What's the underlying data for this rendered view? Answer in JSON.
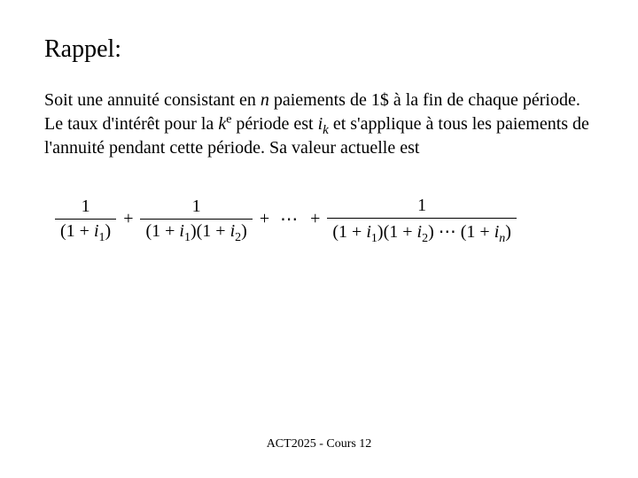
{
  "title": "Rappel:",
  "paragraph": {
    "p1": "Soit une annuité consistant en ",
    "p2": "n",
    "p3": " paiements de 1$ à la fin de chaque période.  Le taux d'intérêt pour la ",
    "p4": "k",
    "p5": "e",
    "p6": " période est ",
    "p7": "i",
    "p8": "k",
    "p9": " et s'applique à tous les paiements de l'annuité pendant cette période. Sa valeur actuelle est"
  },
  "formula": {
    "type": "sum-of-fractions",
    "terms": [
      {
        "numerator": "1",
        "denominator_factors": [
          "(1 + i₁)"
        ]
      },
      {
        "numerator": "1",
        "denominator_factors": [
          "(1 + i₁)",
          "(1 + i₂)"
        ]
      },
      {
        "ellipsis": true
      },
      {
        "numerator": "1",
        "denominator_factors": [
          "(1 + i₁)",
          "(1 + i₂)",
          "⋯",
          "(1 + iₙ)"
        ]
      }
    ],
    "num1": "1",
    "den1a": "(1 + ",
    "den1b": "i",
    "den1c": "1",
    "den1d": ")",
    "plus1": "+",
    "num2": "1",
    "den2a": "(1 + ",
    "den2b": "i",
    "den2c": "1",
    "den2d": ")(1 + ",
    "den2e": "i",
    "den2f": "2",
    "den2g": ")",
    "plus2": "+",
    "dots": "⋯",
    "plus3": "+",
    "num3": "1",
    "den3a": "(1 + ",
    "den3b": "i",
    "den3c": "1",
    "den3d": ")(1 + ",
    "den3e": "i",
    "den3f": "2",
    "den3g": ") ⋯ (1 + ",
    "den3h": "i",
    "den3i": "n",
    "den3j": ")"
  },
  "footer": "ACT2025 - Cours 12",
  "style": {
    "background_color": "#ffffff",
    "text_color": "#000000",
    "title_fontsize_pt": 21,
    "body_fontsize_pt": 15,
    "formula_fontsize_pt": 15,
    "footer_fontsize_pt": 10.5,
    "font_family": "Times New Roman"
  }
}
